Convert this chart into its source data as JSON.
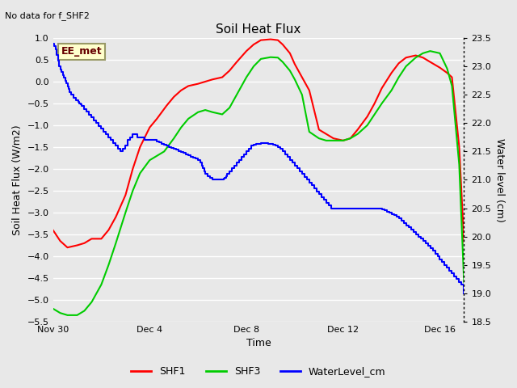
{
  "title": "Soil Heat Flux",
  "subtitle": "No data for f_SHF2",
  "xlabel": "Time",
  "ylabel_left": "Soil Heat Flux (W/m2)",
  "ylabel_right": "Water level (cm)",
  "ylim_left": [
    -5.5,
    1.0
  ],
  "ylim_right": [
    18.5,
    23.5
  ],
  "yticks_left": [
    -5.5,
    -5.0,
    -4.5,
    -4.0,
    -3.5,
    -3.0,
    -2.5,
    -2.0,
    -1.5,
    -1.0,
    -0.5,
    0.0,
    0.5,
    1.0
  ],
  "yticks_right": [
    18.5,
    19.0,
    19.5,
    20.0,
    20.5,
    21.0,
    21.5,
    22.0,
    22.5,
    23.0,
    23.5
  ],
  "bg_color": "#e8e8e8",
  "plot_bg_color": "#e8e8e8",
  "grid_color": "white",
  "legend_label": "EE_met",
  "legend_box_color": "#ffffcc",
  "legend_box_edge": "#999966",
  "colors": {
    "SHF1": "#ff0000",
    "SHF3": "#00cc00",
    "WaterLevel_cm": "#0000ff"
  },
  "xtick_labels": [
    "Nov 30",
    "Dec 4",
    "Dec 8",
    "Dec 12",
    "Dec 16"
  ],
  "xtick_positions": [
    0,
    4,
    8,
    12,
    16
  ],
  "shf1_x": [
    0,
    0.3,
    0.6,
    1.0,
    1.3,
    1.6,
    2.0,
    2.3,
    2.6,
    3.0,
    3.3,
    3.6,
    4.0,
    4.3,
    4.5,
    4.7,
    5.0,
    5.3,
    5.6,
    6.0,
    6.3,
    6.6,
    7.0,
    7.3,
    7.6,
    8.0,
    8.3,
    8.6,
    9.0,
    9.3,
    9.5,
    9.8,
    10.0,
    10.3,
    10.6,
    11.0,
    11.3,
    11.6,
    12.0,
    12.3,
    12.6,
    13.0,
    13.3,
    13.6,
    14.0,
    14.3,
    14.6,
    15.0,
    15.3,
    15.6,
    16.0,
    16.3,
    16.5,
    16.8,
    17.0
  ],
  "shf1_y": [
    -3.4,
    -3.65,
    -3.8,
    -3.75,
    -3.7,
    -3.6,
    -3.6,
    -3.4,
    -3.1,
    -2.6,
    -2.0,
    -1.5,
    -1.05,
    -0.85,
    -0.7,
    -0.55,
    -0.35,
    -0.2,
    -0.1,
    -0.05,
    0.0,
    0.05,
    0.1,
    0.25,
    0.45,
    0.7,
    0.85,
    0.95,
    0.97,
    0.95,
    0.85,
    0.65,
    0.4,
    0.1,
    -0.2,
    -1.1,
    -1.2,
    -1.3,
    -1.35,
    -1.3,
    -1.1,
    -0.8,
    -0.5,
    -0.15,
    0.2,
    0.42,
    0.55,
    0.6,
    0.55,
    0.45,
    0.32,
    0.2,
    0.1,
    -1.5,
    -3.7
  ],
  "shf3_x": [
    0,
    0.3,
    0.6,
    1.0,
    1.3,
    1.6,
    2.0,
    2.3,
    2.6,
    3.0,
    3.3,
    3.6,
    4.0,
    4.3,
    4.6,
    5.0,
    5.3,
    5.6,
    6.0,
    6.3,
    6.6,
    7.0,
    7.3,
    7.6,
    8.0,
    8.3,
    8.6,
    9.0,
    9.3,
    9.5,
    9.8,
    10.0,
    10.3,
    10.6,
    11.0,
    11.3,
    11.6,
    12.0,
    12.3,
    12.6,
    13.0,
    13.3,
    13.6,
    14.0,
    14.3,
    14.6,
    15.0,
    15.3,
    15.6,
    16.0,
    16.3,
    16.5,
    16.8,
    17.0
  ],
  "shf3_y": [
    -5.2,
    -5.3,
    -5.35,
    -5.35,
    -5.25,
    -5.05,
    -4.65,
    -4.2,
    -3.7,
    -3.0,
    -2.5,
    -2.1,
    -1.8,
    -1.7,
    -1.6,
    -1.3,
    -1.05,
    -0.85,
    -0.7,
    -0.65,
    -0.7,
    -0.75,
    -0.6,
    -0.3,
    0.1,
    0.35,
    0.52,
    0.56,
    0.55,
    0.45,
    0.25,
    0.05,
    -0.3,
    -1.15,
    -1.3,
    -1.35,
    -1.35,
    -1.35,
    -1.3,
    -1.2,
    -1.0,
    -0.75,
    -0.5,
    -0.2,
    0.1,
    0.35,
    0.55,
    0.65,
    0.7,
    0.65,
    0.3,
    -0.1,
    -1.9,
    -4.6
  ],
  "water_x": [
    0.0,
    0.05,
    0.1,
    0.15,
    0.2,
    0.25,
    0.3,
    0.35,
    0.4,
    0.45,
    0.5,
    0.55,
    0.6,
    0.65,
    0.7,
    0.75,
    0.8,
    0.85,
    0.9,
    0.95,
    1.0,
    1.05,
    1.1,
    1.15,
    1.2,
    1.3,
    1.4,
    1.5,
    1.6,
    1.7,
    1.8,
    1.9,
    2.0,
    2.1,
    2.2,
    2.3,
    2.4,
    2.5,
    2.6,
    2.7,
    2.8,
    2.9,
    3.0,
    3.1,
    3.2,
    3.3,
    3.4,
    3.5,
    3.6,
    3.7,
    3.8,
    3.9,
    4.0,
    4.05,
    4.1,
    4.15,
    4.2,
    4.3,
    4.4,
    4.5,
    4.6,
    4.7,
    4.8,
    4.9,
    5.0,
    5.1,
    5.2,
    5.3,
    5.4,
    5.5,
    5.6,
    5.7,
    5.8,
    5.9,
    6.0,
    6.1,
    6.15,
    6.2,
    6.25,
    6.3,
    6.4,
    6.5,
    6.6,
    6.7,
    6.8,
    6.9,
    7.0,
    7.05,
    7.1,
    7.15,
    7.2,
    7.3,
    7.4,
    7.5,
    7.6,
    7.7,
    7.8,
    7.9,
    8.0,
    8.1,
    8.2,
    8.3,
    8.4,
    8.5,
    8.6,
    8.7,
    8.8,
    8.9,
    9.0,
    9.1,
    9.2,
    9.3,
    9.4,
    9.5,
    9.6,
    9.7,
    9.8,
    9.9,
    10.0,
    10.1,
    10.2,
    10.3,
    10.4,
    10.5,
    10.6,
    10.7,
    10.8,
    10.9,
    11.0,
    11.1,
    11.2,
    11.3,
    11.4,
    11.5,
    11.6,
    11.7,
    11.8,
    11.9,
    12.0,
    12.1,
    12.15,
    12.2,
    12.3,
    12.4,
    12.5,
    12.6,
    12.7,
    12.8,
    12.9,
    13.0,
    13.1,
    13.2,
    13.3,
    13.4,
    13.5,
    13.6,
    13.7,
    13.8,
    13.9,
    14.0,
    14.1,
    14.2,
    14.3,
    14.4,
    14.5,
    14.6,
    14.7,
    14.8,
    14.9,
    15.0,
    15.1,
    15.2,
    15.3,
    15.4,
    15.5,
    15.6,
    15.7,
    15.8,
    15.9,
    16.0,
    16.1,
    16.2,
    16.3,
    16.4,
    16.5,
    16.6,
    16.7,
    16.8,
    16.9,
    17.0
  ],
  "water_y": [
    23.4,
    23.35,
    23.3,
    23.2,
    23.1,
    23.0,
    22.95,
    22.9,
    22.85,
    22.8,
    22.75,
    22.7,
    22.65,
    22.6,
    22.55,
    22.5,
    22.5,
    22.45,
    22.45,
    22.4,
    22.4,
    22.38,
    22.35,
    22.33,
    22.3,
    22.25,
    22.2,
    22.15,
    22.1,
    22.05,
    22.0,
    21.95,
    21.9,
    21.85,
    21.8,
    21.75,
    21.7,
    21.65,
    21.6,
    21.55,
    21.5,
    21.55,
    21.6,
    21.7,
    21.75,
    21.8,
    21.8,
    21.75,
    21.75,
    21.75,
    21.7,
    21.7,
    21.7,
    21.7,
    21.7,
    21.7,
    21.7,
    21.68,
    21.66,
    21.64,
    21.62,
    21.6,
    21.58,
    21.56,
    21.55,
    21.53,
    21.51,
    21.49,
    21.47,
    21.45,
    21.43,
    21.41,
    21.39,
    21.37,
    21.35,
    21.3,
    21.25,
    21.2,
    21.15,
    21.1,
    21.06,
    21.03,
    21.0,
    21.0,
    21.0,
    21.0,
    21.0,
    21.02,
    21.04,
    21.06,
    21.1,
    21.15,
    21.2,
    21.25,
    21.3,
    21.35,
    21.4,
    21.45,
    21.5,
    21.55,
    21.6,
    21.62,
    21.63,
    21.64,
    21.65,
    21.65,
    21.65,
    21.64,
    21.63,
    21.62,
    21.6,
    21.58,
    21.55,
    21.5,
    21.45,
    21.4,
    21.35,
    21.3,
    21.25,
    21.2,
    21.15,
    21.1,
    21.05,
    21.0,
    20.95,
    20.9,
    20.85,
    20.8,
    20.75,
    20.7,
    20.65,
    20.6,
    20.55,
    20.5,
    20.5,
    20.5,
    20.5,
    20.5,
    20.5,
    20.5,
    20.5,
    20.5,
    20.5,
    20.5,
    20.5,
    20.5,
    20.5,
    20.5,
    20.5,
    20.5,
    20.5,
    20.5,
    20.5,
    20.5,
    20.5,
    20.48,
    20.46,
    20.44,
    20.42,
    20.4,
    20.38,
    20.35,
    20.32,
    20.28,
    20.24,
    20.2,
    20.16,
    20.12,
    20.08,
    20.04,
    20.0,
    19.96,
    19.92,
    19.88,
    19.84,
    19.8,
    19.75,
    19.7,
    19.65,
    19.6,
    19.55,
    19.5,
    19.45,
    19.4,
    19.35,
    19.3,
    19.25,
    19.2,
    19.15,
    19.0
  ]
}
